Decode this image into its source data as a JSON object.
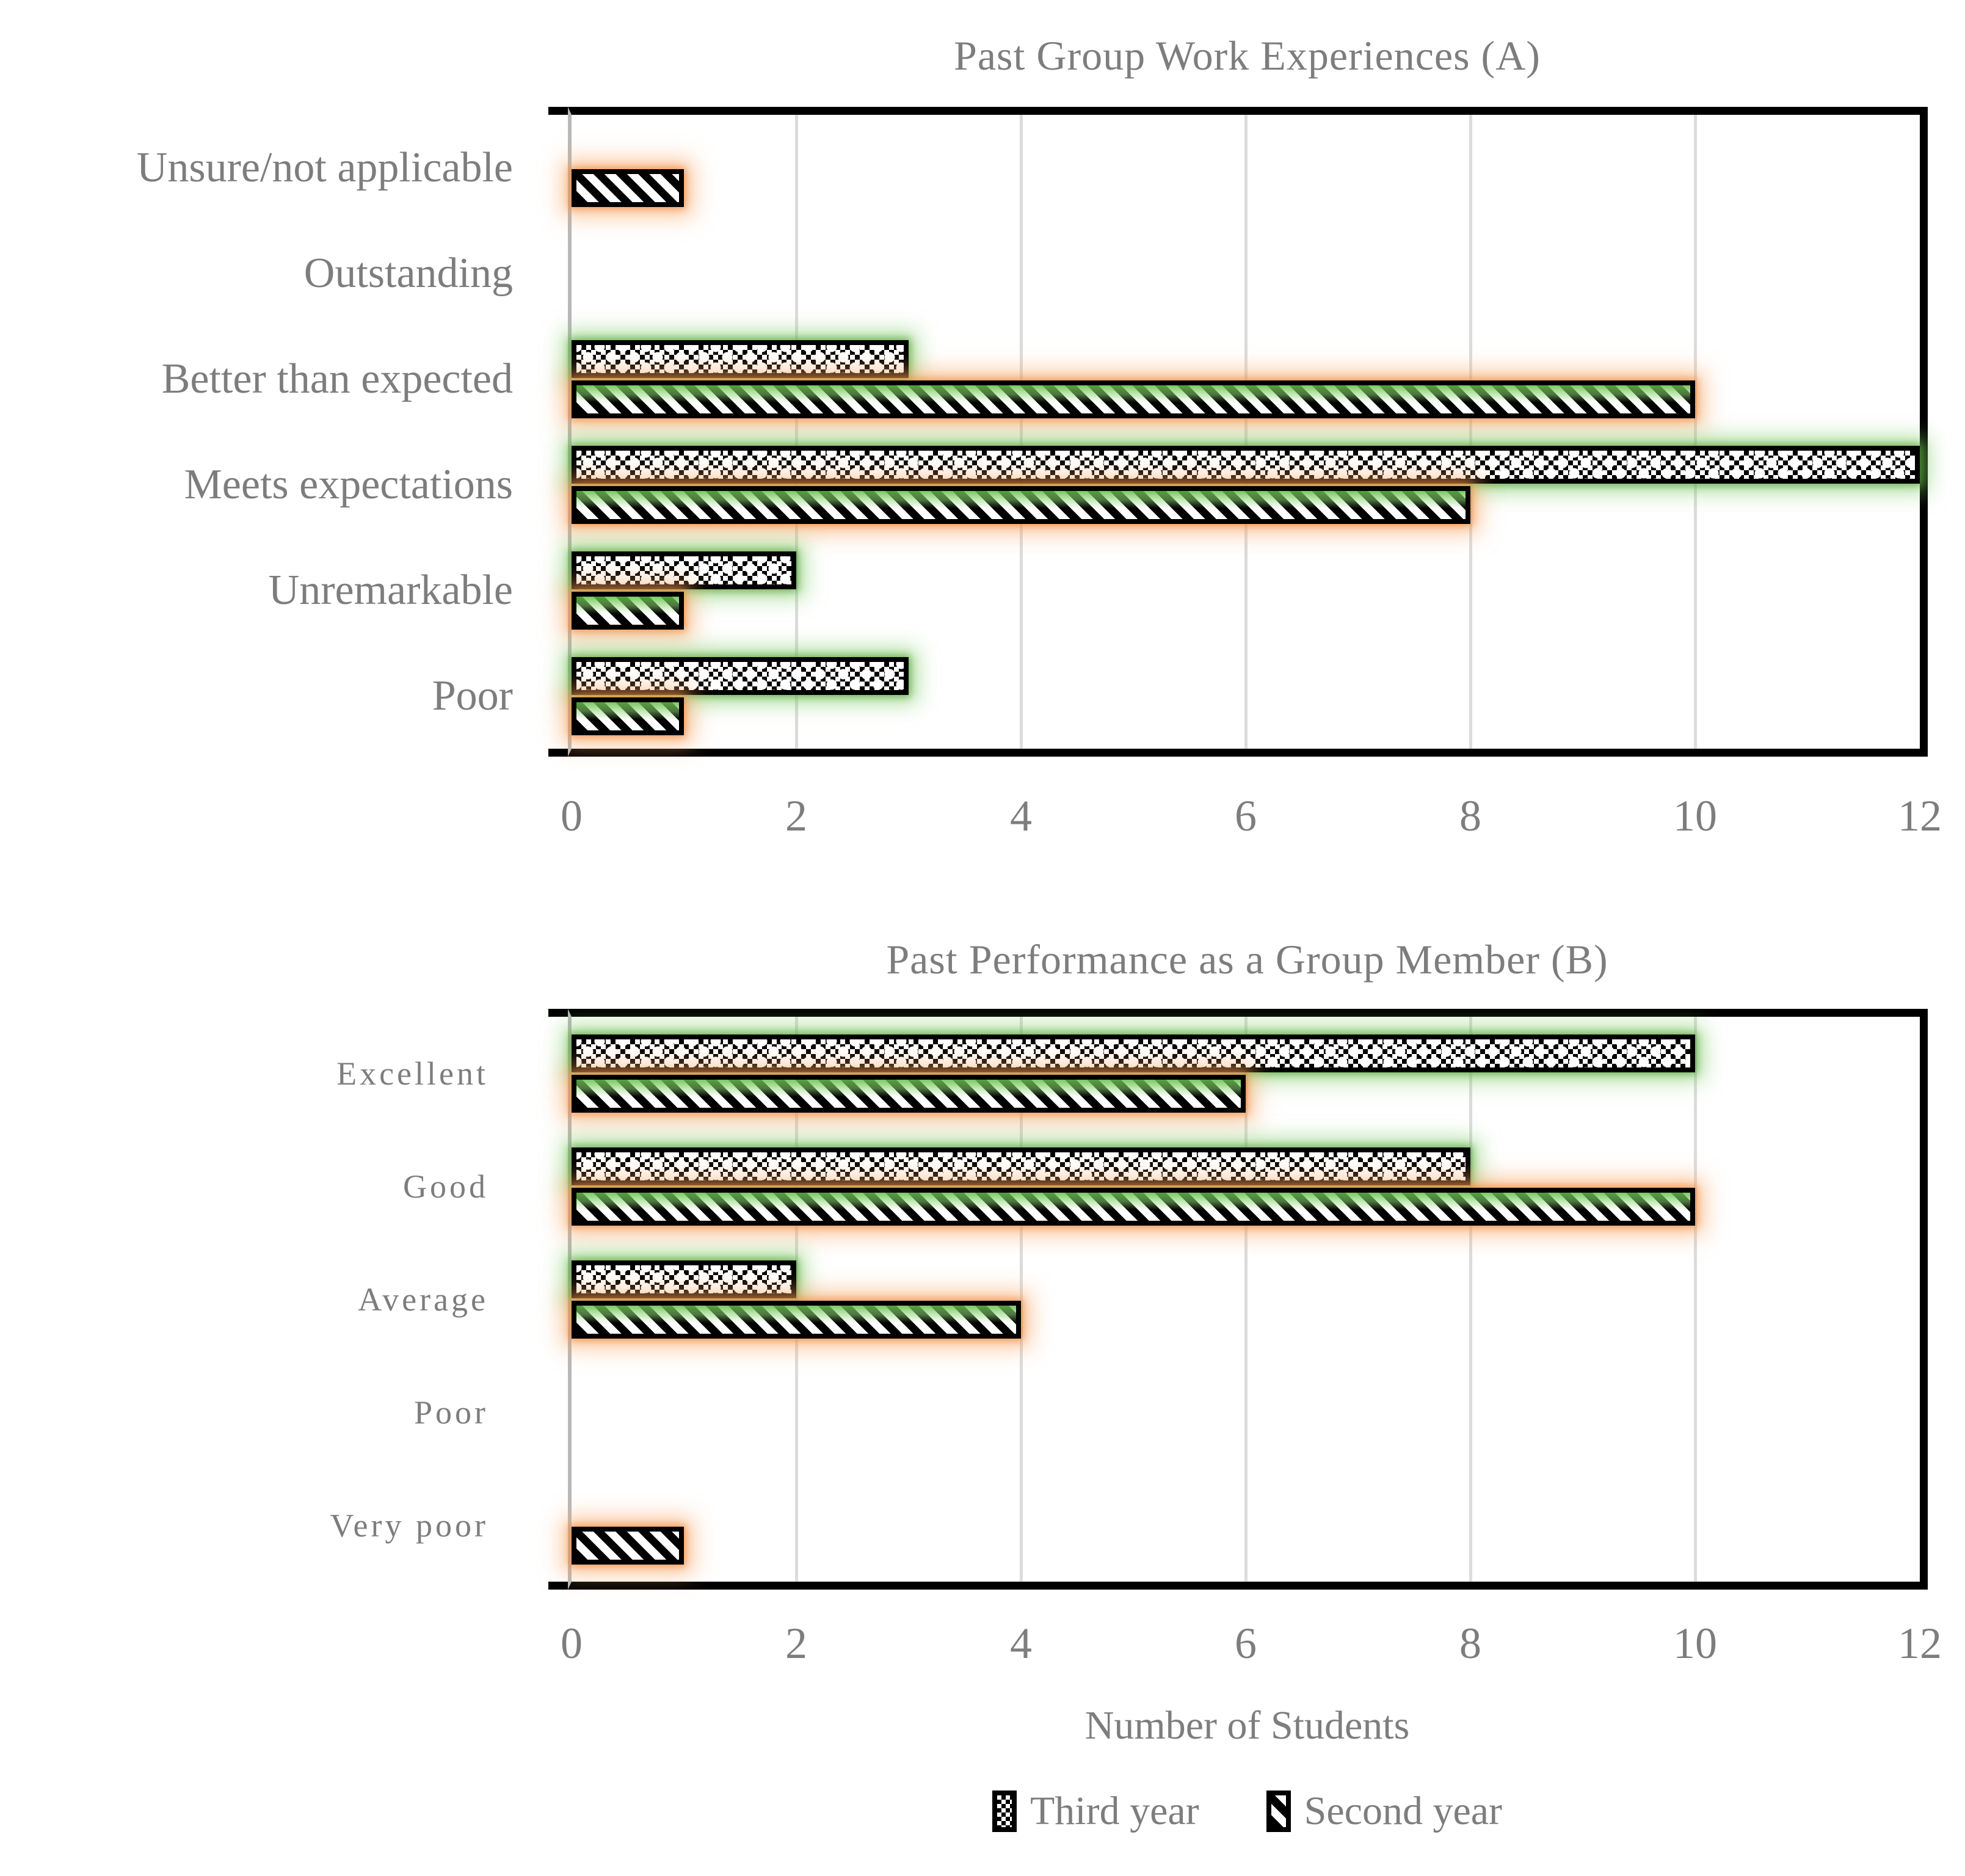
{
  "chart_data": [
    {
      "type": "bar",
      "orientation": "horizontal",
      "title": "Past Group Work Experiences (A)",
      "categories": [
        "Unsure/not applicable",
        "Outstanding",
        "Better than expected",
        "Meets expectations",
        "Unremarkable",
        "Poor"
      ],
      "series": [
        {
          "name": "Third year",
          "pattern": "checkerboard",
          "glow_color": "#7dcb63",
          "values": [
            0,
            0,
            3,
            12,
            2,
            3
          ]
        },
        {
          "name": "Second year",
          "pattern": "diagonal-stripes",
          "glow_color": "#f5a463",
          "values": [
            1,
            0,
            10,
            8,
            1,
            1
          ]
        }
      ],
      "xlabel": "",
      "ylabel": "",
      "xlim": [
        0,
        12
      ],
      "xticks": [
        0,
        2,
        4,
        6,
        8,
        10,
        12
      ],
      "grid": "vertical",
      "legend_position": "none"
    },
    {
      "type": "bar",
      "orientation": "horizontal",
      "title": "Past Performance as a Group Member (B)",
      "categories": [
        "Excellent",
        "Good",
        "Average",
        "Poor",
        "Very poor"
      ],
      "series": [
        {
          "name": "Third year",
          "pattern": "checkerboard",
          "glow_color": "#7dcb63",
          "values": [
            10,
            8,
            2,
            0,
            0
          ]
        },
        {
          "name": "Second year",
          "pattern": "diagonal-stripes",
          "glow_color": "#f5a463",
          "values": [
            6,
            10,
            4,
            0,
            1
          ]
        }
      ],
      "xlabel": "Number of Students",
      "ylabel": "",
      "xlim": [
        0,
        12
      ],
      "xticks": [
        0,
        2,
        4,
        6,
        8,
        10,
        12
      ],
      "grid": "vertical",
      "legend_position": "bottom-center"
    }
  ],
  "legend": {
    "items": [
      {
        "label": "Third year",
        "pattern": "checkerboard"
      },
      {
        "label": "Second year",
        "pattern": "diagonal-stripes"
      }
    ]
  },
  "colors": {
    "text_gray": "#7d7d7d",
    "gridline": "#dcdcdc",
    "axis_line": "#b8b8b8",
    "frame": "#000000",
    "bar_fill": "#ffffff",
    "bar_pattern": "#000000",
    "third_year_glow": "#7dcb63",
    "second_year_glow": "#f5a463"
  }
}
